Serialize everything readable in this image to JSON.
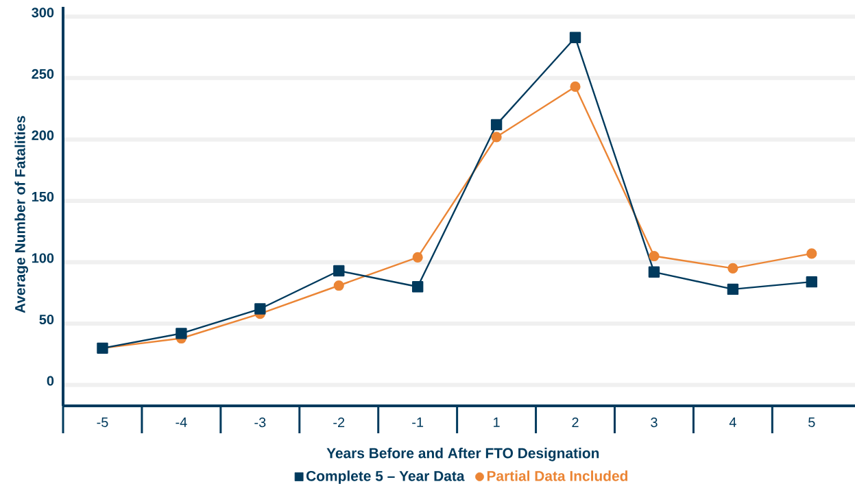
{
  "chart_data": {
    "type": "line",
    "xlabel": "Years Before and After FTO Designation",
    "ylabel": "Average Number of Fatalities",
    "categories": [
      "-5",
      "-4",
      "-3",
      "-2",
      "-1",
      "1",
      "2",
      "3",
      "4",
      "5"
    ],
    "series": [
      {
        "name": "Complete 5 – Year Data",
        "color": "#003a5d",
        "marker": "square",
        "values": [
          30,
          42,
          62,
          93,
          80,
          212,
          283,
          92,
          78,
          84
        ]
      },
      {
        "name": "Partial Data Included",
        "color": "#eb8535",
        "marker": "circle",
        "values": [
          30,
          38,
          58,
          81,
          104,
          202,
          243,
          105,
          95,
          107
        ]
      }
    ],
    "ylim": [
      -17,
      308
    ],
    "yticks": [
      0,
      50,
      100,
      150,
      200,
      250,
      300
    ],
    "grid": "y",
    "legend": "bottom"
  }
}
